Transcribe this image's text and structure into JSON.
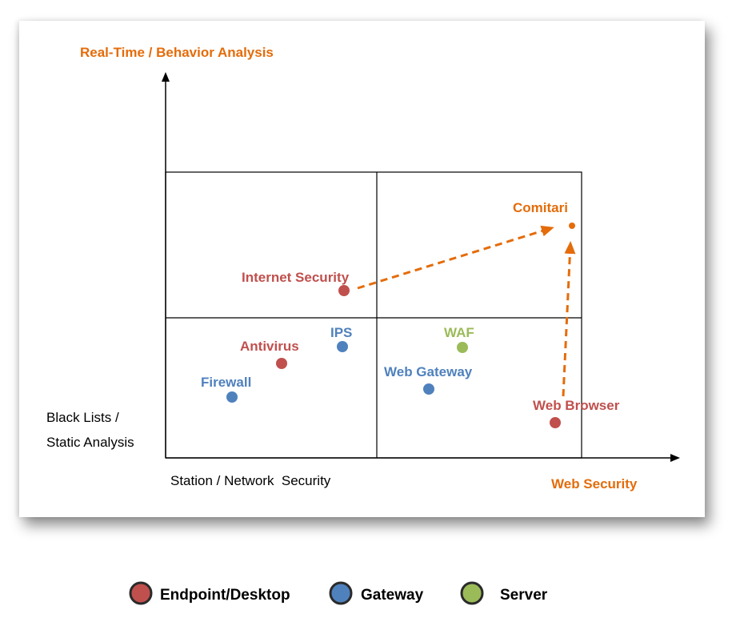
{
  "axes": {
    "y_top_label": "Real-Time / Behavior Analysis",
    "y_bottom_label_line1": "Black Lists /",
    "y_bottom_label_line2": "Static Analysis",
    "x_left_label": "Station / Network  Security",
    "x_right_label": "Web Security"
  },
  "colors": {
    "endpoint": "#c0504d",
    "gateway": "#4f81bd",
    "server": "#9bbb59",
    "accent": "#e46c0a"
  },
  "points": [
    {
      "label": "Comitari",
      "category": "accent"
    },
    {
      "label": "Internet Security",
      "category": "endpoint"
    },
    {
      "label": "IPS",
      "category": "gateway"
    },
    {
      "label": "WAF",
      "category": "server"
    },
    {
      "label": "Antivirus",
      "category": "endpoint"
    },
    {
      "label": "Web Gateway",
      "category": "gateway"
    },
    {
      "label": "Firewall",
      "category": "gateway"
    },
    {
      "label": "Web Browser",
      "category": "endpoint"
    }
  ],
  "legend": [
    {
      "label": "Endpoint/Desktop",
      "category": "endpoint"
    },
    {
      "label": "Gateway",
      "category": "gateway"
    },
    {
      "label": "Server",
      "category": "server"
    }
  ]
}
